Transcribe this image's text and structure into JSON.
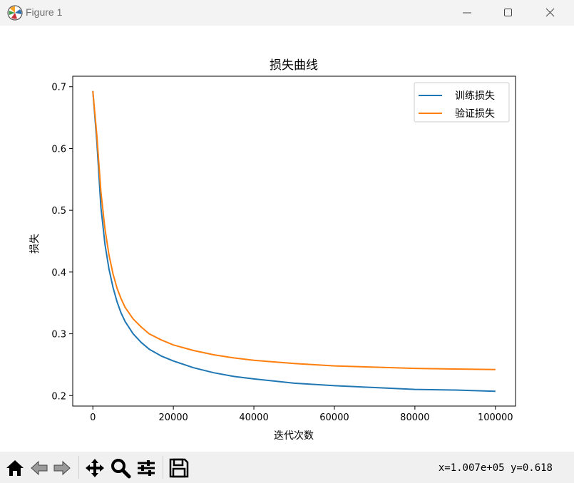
{
  "window": {
    "title": "Figure 1"
  },
  "chart_data": {
    "type": "line",
    "title": "损失曲线",
    "xlabel": "迭代次数",
    "ylabel": "损失",
    "xlim": [
      -5000,
      105000
    ],
    "ylim": [
      0.183,
      0.717
    ],
    "x_ticks": [
      0,
      20000,
      40000,
      60000,
      80000,
      100000
    ],
    "x_tick_labels": [
      "0",
      "20000",
      "40000",
      "60000",
      "80000",
      "100000"
    ],
    "y_ticks": [
      0.2,
      0.3,
      0.4,
      0.5,
      0.6,
      0.7
    ],
    "y_tick_labels": [
      "0.2",
      "0.3",
      "0.4",
      "0.5",
      "0.6",
      "0.7"
    ],
    "legend_position": "top-right",
    "x": [
      0,
      1000,
      2000,
      3000,
      4000,
      5000,
      6000,
      7000,
      8000,
      10000,
      12000,
      14000,
      17000,
      20000,
      25000,
      30000,
      35000,
      40000,
      50000,
      60000,
      70000,
      80000,
      90000,
      100000
    ],
    "series": [
      {
        "name": "训练损失",
        "color": "#1f77b4",
        "values": [
          0.693,
          0.61,
          0.505,
          0.445,
          0.405,
          0.375,
          0.352,
          0.334,
          0.32,
          0.3,
          0.286,
          0.275,
          0.264,
          0.256,
          0.245,
          0.237,
          0.231,
          0.227,
          0.22,
          0.216,
          0.213,
          0.21,
          0.209,
          0.207
        ]
      },
      {
        "name": "验证损失",
        "color": "#ff7f0e",
        "values": [
          0.693,
          0.62,
          0.53,
          0.47,
          0.428,
          0.397,
          0.374,
          0.357,
          0.343,
          0.324,
          0.311,
          0.3,
          0.29,
          0.282,
          0.273,
          0.266,
          0.261,
          0.257,
          0.252,
          0.248,
          0.246,
          0.244,
          0.243,
          0.242
        ]
      }
    ]
  },
  "toolbar": {
    "buttons": [
      "home-icon",
      "back-icon",
      "forward-icon",
      "pan-icon",
      "zoom-icon",
      "configure-icon",
      "save-icon"
    ],
    "coords": "x=1.007e+05 y=0.618"
  }
}
